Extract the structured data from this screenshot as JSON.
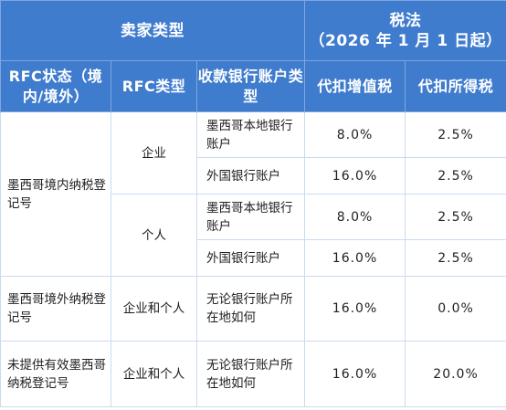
{
  "header": {
    "seller_type": "卖家类型",
    "tax_title": "税法",
    "tax_subtitle": "（2026 年 1 月 1 日起）",
    "col_rfc_status": "RFC状态（境内/境外）",
    "col_rfc_type": "RFC类型",
    "col_bank": "收款银行账户类型",
    "col_vat": "代扣增值税",
    "col_income": "代扣所得税"
  },
  "rows": [
    {
      "status": "墨西哥境内纳税登记号",
      "rfc_type_a": "企业",
      "rfc_type_b": "个人",
      "lines": [
        {
          "bank": "墨西哥本地银行账户",
          "vat": "8.0%",
          "income": "2.5%"
        },
        {
          "bank": "外国银行账户",
          "vat": "16.0%",
          "income": "2.5%"
        },
        {
          "bank": "墨西哥本地银行账户",
          "vat": "8.0%",
          "income": "2.5%"
        },
        {
          "bank": "外国银行账户",
          "vat": "16.0%",
          "income": "2.5%"
        }
      ]
    },
    {
      "status": "墨西哥境外纳税登记号",
      "rfc_type": "企业和个人",
      "bank": "无论银行账户所在地如何",
      "vat": "16.0%",
      "income": "0.0%"
    },
    {
      "status": "未提供有效墨西哥纳税登记号",
      "rfc_type": "企业和个人",
      "bank": "无论银行账户所在地如何",
      "vat": "16.0%",
      "income": "20.0%"
    }
  ]
}
